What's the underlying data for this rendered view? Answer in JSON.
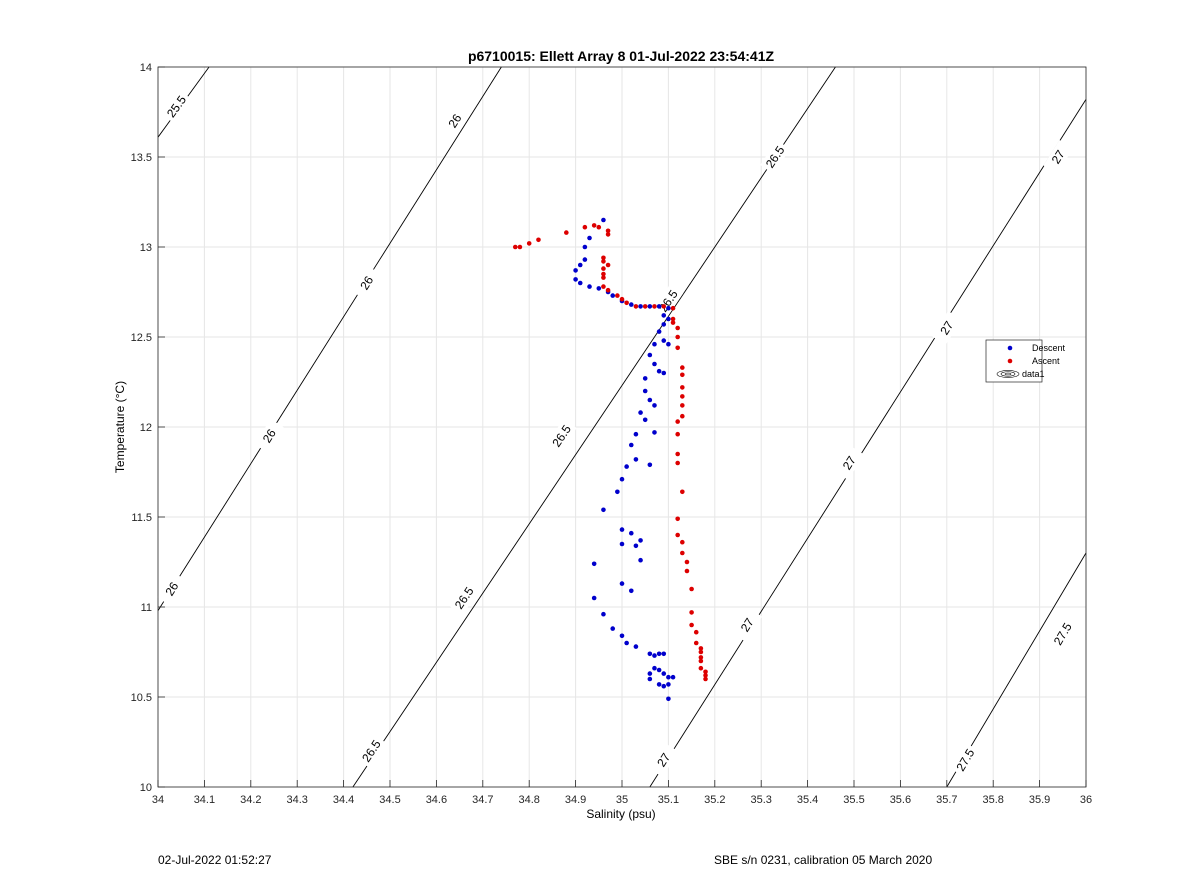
{
  "chart_data": {
    "type": "scatter",
    "title": "p6710015: Ellett Array 8 01-Jul-2022 23:54:41Z",
    "xlabel": "Salinity (psu)",
    "ylabel": "Temperature (°C)",
    "xlim": [
      34,
      36
    ],
    "ylim": [
      10,
      14
    ],
    "grid": true,
    "legend_placement": "right",
    "xticks": [
      "34",
      "34.1",
      "34.2",
      "34.3",
      "34.4",
      "34.5",
      "34.6",
      "34.7",
      "34.8",
      "34.9",
      "35",
      "35.1",
      "35.2",
      "35.3",
      "35.4",
      "35.5",
      "35.6",
      "35.7",
      "35.8",
      "35.9",
      "36"
    ],
    "yticks": [
      "10",
      "10.5",
      "11",
      "11.5",
      "12",
      "12.5",
      "13",
      "13.5",
      "14"
    ],
    "series": [
      {
        "name": "Descent",
        "color": "#0000cc",
        "points": [
          [
            34.96,
            13.15
          ],
          [
            34.93,
            13.05
          ],
          [
            34.92,
            13.0
          ],
          [
            34.92,
            12.93
          ],
          [
            34.91,
            12.9
          ],
          [
            34.9,
            12.87
          ],
          [
            34.9,
            12.82
          ],
          [
            34.91,
            12.8
          ],
          [
            34.93,
            12.78
          ],
          [
            34.95,
            12.77
          ],
          [
            34.97,
            12.75
          ],
          [
            34.98,
            12.73
          ],
          [
            35.0,
            12.7
          ],
          [
            35.02,
            12.68
          ],
          [
            35.04,
            12.67
          ],
          [
            35.06,
            12.67
          ],
          [
            35.08,
            12.67
          ],
          [
            35.1,
            12.66
          ],
          [
            35.09,
            12.62
          ],
          [
            35.1,
            12.6
          ],
          [
            35.09,
            12.57
          ],
          [
            35.08,
            12.53
          ],
          [
            35.09,
            12.48
          ],
          [
            35.1,
            12.46
          ],
          [
            35.07,
            12.46
          ],
          [
            35.06,
            12.4
          ],
          [
            35.07,
            12.35
          ],
          [
            35.08,
            12.31
          ],
          [
            35.09,
            12.3
          ],
          [
            35.05,
            12.27
          ],
          [
            35.05,
            12.2
          ],
          [
            35.06,
            12.15
          ],
          [
            35.07,
            12.12
          ],
          [
            35.04,
            12.08
          ],
          [
            35.05,
            12.04
          ],
          [
            35.07,
            11.97
          ],
          [
            35.03,
            11.96
          ],
          [
            35.02,
            11.9
          ],
          [
            35.03,
            11.82
          ],
          [
            35.06,
            11.79
          ],
          [
            35.01,
            11.78
          ],
          [
            35.0,
            11.71
          ],
          [
            34.99,
            11.64
          ],
          [
            34.96,
            11.54
          ],
          [
            35.0,
            11.43
          ],
          [
            35.02,
            11.41
          ],
          [
            35.0,
            11.35
          ],
          [
            35.04,
            11.37
          ],
          [
            35.03,
            11.34
          ],
          [
            35.04,
            11.26
          ],
          [
            34.94,
            11.24
          ],
          [
            35.0,
            11.13
          ],
          [
            35.02,
            11.09
          ],
          [
            34.94,
            11.05
          ],
          [
            34.96,
            10.96
          ],
          [
            34.98,
            10.88
          ],
          [
            35.0,
            10.84
          ],
          [
            35.01,
            10.8
          ],
          [
            35.03,
            10.78
          ],
          [
            35.06,
            10.74
          ],
          [
            35.07,
            10.73
          ],
          [
            35.08,
            10.74
          ],
          [
            35.09,
            10.74
          ],
          [
            35.07,
            10.66
          ],
          [
            35.08,
            10.65
          ],
          [
            35.06,
            10.63
          ],
          [
            35.09,
            10.63
          ],
          [
            35.06,
            10.6
          ],
          [
            35.1,
            10.61
          ],
          [
            35.08,
            10.57
          ],
          [
            35.09,
            10.56
          ],
          [
            35.1,
            10.57
          ],
          [
            35.11,
            10.61
          ],
          [
            35.1,
            10.49
          ]
        ]
      },
      {
        "name": "Ascent",
        "color": "#dd0000",
        "points": [
          [
            34.77,
            13.0
          ],
          [
            34.78,
            13.0
          ],
          [
            34.8,
            13.02
          ],
          [
            34.82,
            13.04
          ],
          [
            34.88,
            13.08
          ],
          [
            34.92,
            13.11
          ],
          [
            34.95,
            13.11
          ],
          [
            34.94,
            13.12
          ],
          [
            34.97,
            13.09
          ],
          [
            34.97,
            13.07
          ],
          [
            34.96,
            12.94
          ],
          [
            34.96,
            12.92
          ],
          [
            34.97,
            12.9
          ],
          [
            34.96,
            12.88
          ],
          [
            34.96,
            12.85
          ],
          [
            34.96,
            12.83
          ],
          [
            34.96,
            12.78
          ],
          [
            34.97,
            12.76
          ],
          [
            34.99,
            12.73
          ],
          [
            35.0,
            12.71
          ],
          [
            35.01,
            12.69
          ],
          [
            35.03,
            12.67
          ],
          [
            35.05,
            12.67
          ],
          [
            35.07,
            12.67
          ],
          [
            35.09,
            12.67
          ],
          [
            35.11,
            12.66
          ],
          [
            35.11,
            12.6
          ],
          [
            35.11,
            12.58
          ],
          [
            35.12,
            12.55
          ],
          [
            35.12,
            12.5
          ],
          [
            35.12,
            12.44
          ],
          [
            35.13,
            12.33
          ],
          [
            35.13,
            12.29
          ],
          [
            35.13,
            12.22
          ],
          [
            35.13,
            12.17
          ],
          [
            35.13,
            12.12
          ],
          [
            35.13,
            12.06
          ],
          [
            35.12,
            12.03
          ],
          [
            35.12,
            11.96
          ],
          [
            35.12,
            11.85
          ],
          [
            35.12,
            11.8
          ],
          [
            35.13,
            11.64
          ],
          [
            35.12,
            11.49
          ],
          [
            35.12,
            11.4
          ],
          [
            35.13,
            11.36
          ],
          [
            35.13,
            11.3
          ],
          [
            35.14,
            11.25
          ],
          [
            35.14,
            11.2
          ],
          [
            35.15,
            11.1
          ],
          [
            35.15,
            10.97
          ],
          [
            35.15,
            10.9
          ],
          [
            35.16,
            10.86
          ],
          [
            35.16,
            10.8
          ],
          [
            35.17,
            10.77
          ],
          [
            35.17,
            10.75
          ],
          [
            35.17,
            10.72
          ],
          [
            35.17,
            10.7
          ],
          [
            35.17,
            10.66
          ],
          [
            35.18,
            10.64
          ],
          [
            35.18,
            10.62
          ],
          [
            35.18,
            10.6
          ]
        ]
      },
      {
        "name": "data1",
        "type": "contour",
        "color": "#000000",
        "levels": [
          {
            "level": 25.5,
            "from": [
              34.0,
              13.61
            ],
            "to": [
              34.11,
              14.0
            ],
            "labels": [
              [
                34.04,
                13.78,
                "25.5"
              ]
            ]
          },
          {
            "level": 26,
            "from": [
              34.0,
              10.98
            ],
            "to": [
              34.74,
              14.0
            ],
            "labels": [
              [
                34.64,
                13.7,
                "26"
              ],
              [
                34.45,
                12.8,
                "26"
              ],
              [
                34.24,
                11.95,
                "26"
              ],
              [
                34.03,
                11.1,
                "26"
              ]
            ]
          },
          {
            "level": 26.5,
            "from": [
              34.42,
              10.0
            ],
            "to": [
              35.46,
              14.0
            ],
            "labels": [
              [
                35.33,
                13.5,
                "26.5"
              ],
              [
                35.1,
                12.7,
                "26.5"
              ],
              [
                34.87,
                11.95,
                "26.5"
              ],
              [
                34.66,
                11.05,
                "26.5"
              ],
              [
                34.46,
                10.2,
                "26.5"
              ]
            ]
          },
          {
            "level": 27,
            "from": [
              35.06,
              10.0
            ],
            "to": [
              36.0,
              13.82
            ],
            "labels": [
              [
                35.94,
                13.5,
                "27"
              ],
              [
                35.7,
                12.55,
                "27"
              ],
              [
                35.49,
                11.8,
                "27"
              ],
              [
                35.27,
                10.9,
                "27"
              ],
              [
                35.09,
                10.15,
                "27"
              ]
            ]
          },
          {
            "level": 27.5,
            "from": [
              35.7,
              10.0
            ],
            "to": [
              36.0,
              11.3
            ],
            "labels": [
              [
                35.95,
                10.85,
                "27.5"
              ],
              [
                35.74,
                10.15,
                "27.5"
              ]
            ]
          }
        ]
      }
    ]
  },
  "footer": {
    "timestamp": "02-Jul-2022 01:52:27",
    "instrument": "SBE s/n 0231, calibration 05 March 2020"
  }
}
